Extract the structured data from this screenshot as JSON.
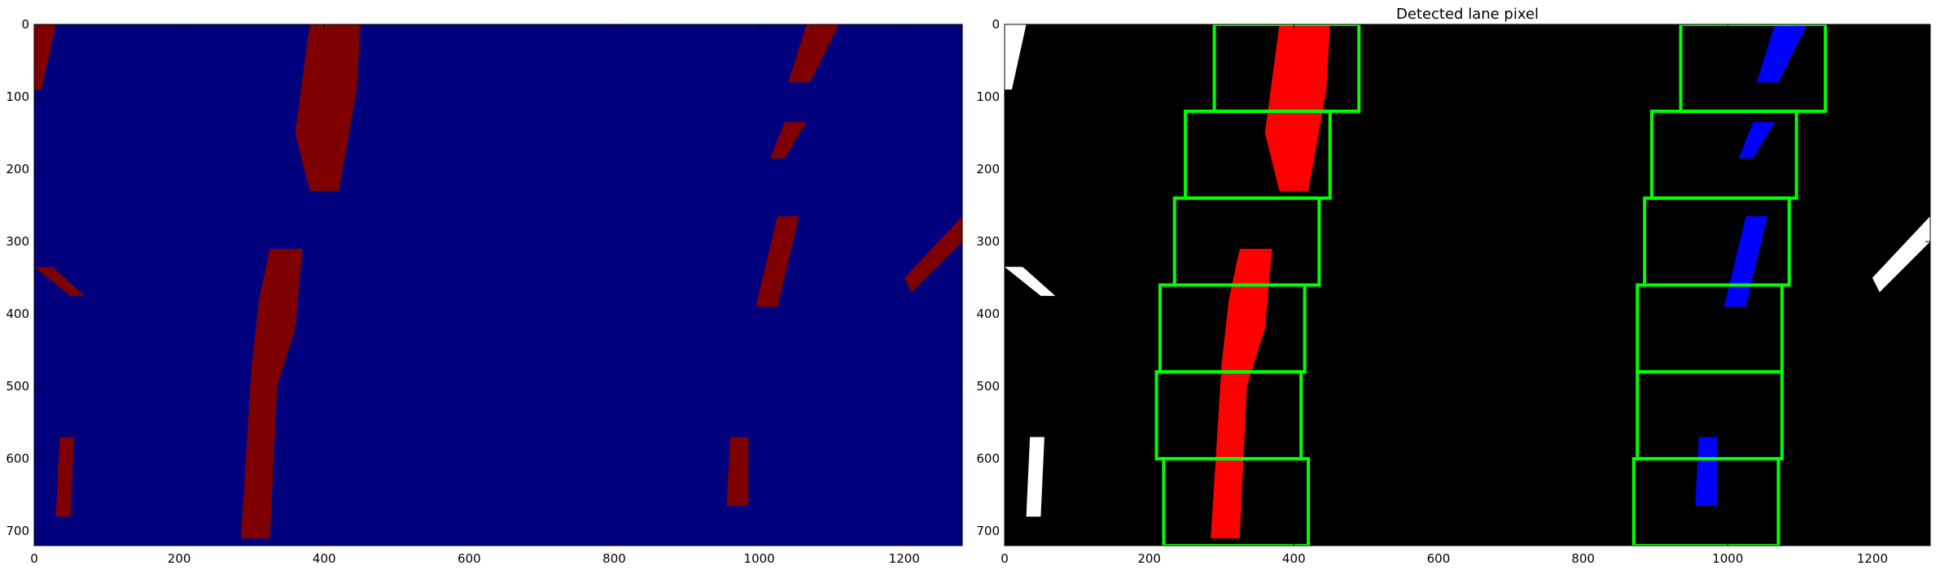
{
  "chart_data": [
    {
      "type": "heatmap",
      "title": "",
      "xlabel": "",
      "ylabel": "",
      "xlim": [
        0,
        1280
      ],
      "ylim": [
        720,
        0
      ],
      "xticks": [
        0,
        200,
        400,
        600,
        800,
        1000,
        1200
      ],
      "yticks": [
        0,
        100,
        200,
        300,
        400,
        500,
        600,
        700
      ],
      "grid": false,
      "background_color": "#00007f",
      "pixel_color": "#7f0000",
      "regions": [
        {
          "name": "left-lane-upper",
          "polygon": [
            [
              380,
              0
            ],
            [
              450,
              0
            ],
            [
              445,
              90
            ],
            [
              420,
              230
            ],
            [
              380,
              230
            ],
            [
              360,
              150
            ]
          ]
        },
        {
          "name": "left-lane-lower",
          "polygon": [
            [
              325,
              310
            ],
            [
              370,
              310
            ],
            [
              360,
              420
            ],
            [
              335,
              500
            ],
            [
              325,
              710
            ],
            [
              285,
              710
            ],
            [
              300,
              470
            ],
            [
              310,
              380
            ]
          ]
        },
        {
          "name": "right-lane-top",
          "polygon": [
            [
              1065,
              0
            ],
            [
              1110,
              0
            ],
            [
              1070,
              80
            ],
            [
              1040,
              80
            ]
          ]
        },
        {
          "name": "right-lane-mid",
          "polygon": [
            [
              1035,
              135
            ],
            [
              1065,
              135
            ],
            [
              1035,
              185
            ],
            [
              1015,
              185
            ]
          ]
        },
        {
          "name": "right-lane-low",
          "polygon": [
            [
              1025,
              265
            ],
            [
              1055,
              265
            ],
            [
              1025,
              390
            ],
            [
              995,
              390
            ]
          ]
        },
        {
          "name": "right-lane-bottom",
          "polygon": [
            [
              960,
              570
            ],
            [
              985,
              570
            ],
            [
              985,
              665
            ],
            [
              955,
              665
            ]
          ]
        },
        {
          "name": "left-edge-top",
          "polygon": [
            [
              0,
              0
            ],
            [
              30,
              0
            ],
            [
              10,
              90
            ],
            [
              0,
              90
            ]
          ]
        },
        {
          "name": "left-edge-mid",
          "polygon": [
            [
              0,
              335
            ],
            [
              25,
              335
            ],
            [
              70,
              375
            ],
            [
              50,
              375
            ]
          ]
        },
        {
          "name": "left-edge-bottom",
          "polygon": [
            [
              35,
              570
            ],
            [
              55,
              570
            ],
            [
              50,
              680
            ],
            [
              30,
              680
            ]
          ]
        },
        {
          "name": "right-edge-mid",
          "polygon": [
            [
              1280,
              265
            ],
            [
              1280,
              300
            ],
            [
              1210,
              370
            ],
            [
              1200,
              350
            ]
          ]
        }
      ]
    },
    {
      "type": "heatmap",
      "title": "Detected lane pixel",
      "xlabel": "",
      "ylabel": "",
      "xlim": [
        0,
        1280
      ],
      "ylim": [
        720,
        0
      ],
      "xticks": [
        0,
        200,
        400,
        600,
        800,
        1000,
        1200
      ],
      "yticks": [
        0,
        100,
        200,
        300,
        400,
        500,
        600,
        700
      ],
      "grid": false,
      "background_color": "#000000",
      "left_lane_color": "#ff0000",
      "right_lane_color": "#0000ff",
      "other_pixel_color": "#ffffff",
      "window_color": "#00ff00",
      "left_windows": [
        {
          "x0": 290,
          "x1": 490,
          "y0": 0,
          "y1": 120
        },
        {
          "x0": 250,
          "x1": 450,
          "y0": 120,
          "y1": 240
        },
        {
          "x0": 235,
          "x1": 435,
          "y0": 240,
          "y1": 360
        },
        {
          "x0": 215,
          "x1": 415,
          "y0": 360,
          "y1": 480
        },
        {
          "x0": 210,
          "x1": 410,
          "y0": 480,
          "y1": 600
        },
        {
          "x0": 220,
          "x1": 420,
          "y0": 600,
          "y1": 720
        }
      ],
      "right_windows": [
        {
          "x0": 935,
          "x1": 1135,
          "y0": 0,
          "y1": 120
        },
        {
          "x0": 895,
          "x1": 1095,
          "y0": 120,
          "y1": 240
        },
        {
          "x0": 885,
          "x1": 1085,
          "y0": 240,
          "y1": 360
        },
        {
          "x0": 875,
          "x1": 1075,
          "y0": 360,
          "y1": 480
        },
        {
          "x0": 875,
          "x1": 1075,
          "y0": 480,
          "y1": 600
        },
        {
          "x0": 870,
          "x1": 1070,
          "y0": 600,
          "y1": 720
        }
      ],
      "left_lane_regions": [
        {
          "polygon": [
            [
              380,
              0
            ],
            [
              450,
              0
            ],
            [
              445,
              90
            ],
            [
              420,
              230
            ],
            [
              380,
              230
            ],
            [
              360,
              150
            ]
          ]
        },
        {
          "polygon": [
            [
              325,
              310
            ],
            [
              370,
              310
            ],
            [
              360,
              420
            ],
            [
              335,
              500
            ],
            [
              325,
              710
            ],
            [
              285,
              710
            ],
            [
              300,
              470
            ],
            [
              310,
              380
            ]
          ]
        }
      ],
      "right_lane_regions": [
        {
          "polygon": [
            [
              1065,
              0
            ],
            [
              1110,
              0
            ],
            [
              1070,
              80
            ],
            [
              1040,
              80
            ]
          ]
        },
        {
          "polygon": [
            [
              1035,
              135
            ],
            [
              1065,
              135
            ],
            [
              1035,
              185
            ],
            [
              1015,
              185
            ]
          ]
        },
        {
          "polygon": [
            [
              1025,
              265
            ],
            [
              1055,
              265
            ],
            [
              1025,
              390
            ],
            [
              995,
              390
            ]
          ]
        },
        {
          "polygon": [
            [
              960,
              570
            ],
            [
              985,
              570
            ],
            [
              985,
              665
            ],
            [
              955,
              665
            ]
          ]
        }
      ],
      "other_regions": [
        {
          "polygon": [
            [
              0,
              0
            ],
            [
              30,
              0
            ],
            [
              10,
              90
            ],
            [
              0,
              90
            ]
          ]
        },
        {
          "polygon": [
            [
              0,
              335
            ],
            [
              25,
              335
            ],
            [
              70,
              375
            ],
            [
              50,
              375
            ]
          ]
        },
        {
          "polygon": [
            [
              35,
              570
            ],
            [
              55,
              570
            ],
            [
              50,
              680
            ],
            [
              30,
              680
            ]
          ]
        },
        {
          "polygon": [
            [
              1280,
              265
            ],
            [
              1280,
              300
            ],
            [
              1210,
              370
            ],
            [
              1200,
              350
            ]
          ]
        }
      ]
    }
  ]
}
